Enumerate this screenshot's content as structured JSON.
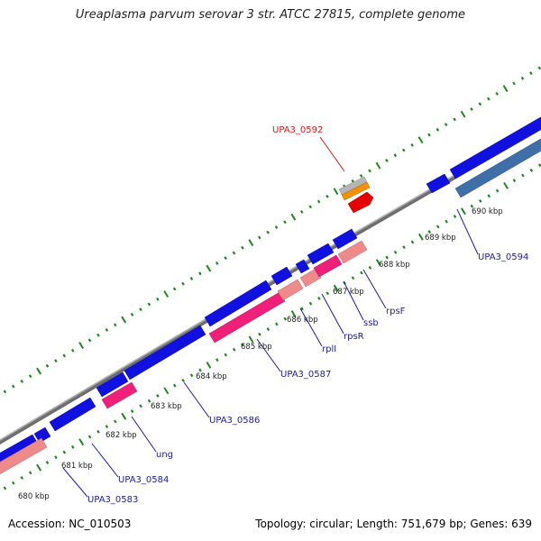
{
  "header": {
    "title": "Ureaplasma parvum serovar 3 str. ATCC 27815, complete genome"
  },
  "footer": {
    "accession": "Accession: NC_010503",
    "summary": "Topology: circular; Length: 751,679 bp; Genes: 639"
  },
  "scale": {
    "unit_suffix": "kbp",
    "ticks": [
      "680 kbp",
      "681 kbp",
      "682 kbp",
      "683 kbp",
      "684 kbp",
      "685 kbp",
      "686 kbp",
      "687 kbp",
      "688 kbp",
      "689 kbp",
      "690 kbp"
    ]
  },
  "gene_labels": [
    {
      "name": "UPA3_0583",
      "color": "#1a1aa8"
    },
    {
      "name": "UPA3_0584",
      "color": "#1a1aa8"
    },
    {
      "name": "ung",
      "color": "#1a1aa8"
    },
    {
      "name": "UPA3_0586",
      "color": "#1a1aa8"
    },
    {
      "name": "UPA3_0587",
      "color": "#1a1aa8"
    },
    {
      "name": "rplI",
      "color": "#1a1aa8"
    },
    {
      "name": "rpsR",
      "color": "#1a1aa8"
    },
    {
      "name": "ssb",
      "color": "#1a1aa8"
    },
    {
      "name": "rpsF",
      "color": "#1a1aa8"
    },
    {
      "name": "UPA3_0594",
      "color": "#1a1aa8"
    },
    {
      "name": "UPA3_0592",
      "color": "#d11a1a"
    }
  ],
  "colors": {
    "cds_blue": "#1010e0",
    "cds_steel": "#3e6fa8",
    "cds_pink": "#f0207a",
    "cds_salmon": "#ee8a8a",
    "trna_red": "#e60000",
    "rrna_orange": "#f59000",
    "misc_grey": "#b5b5b5",
    "backbone": "#808080",
    "tick_green": "#1a8a1a"
  }
}
